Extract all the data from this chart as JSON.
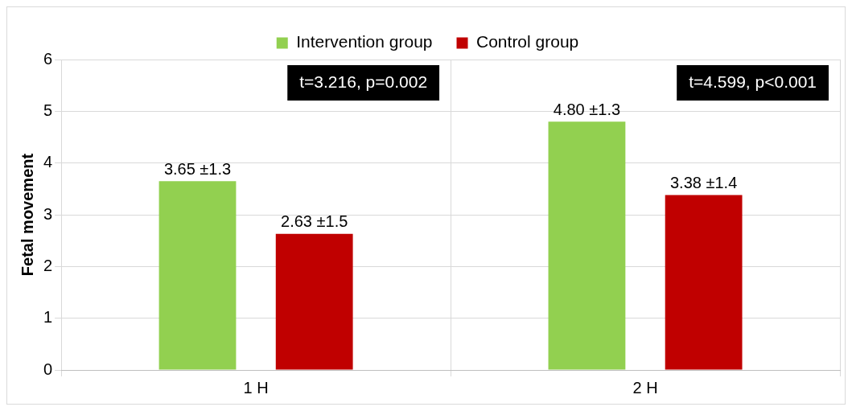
{
  "chart_data": {
    "type": "bar",
    "ylabel": "Fetal movement",
    "categories": [
      "1 H",
      "2 H"
    ],
    "series": [
      {
        "name": "Intervention group",
        "color": "#92d050",
        "values": [
          3.65,
          4.8
        ],
        "value_labels": [
          "3.65 ±1.3",
          "4.80 ±1.3"
        ]
      },
      {
        "name": "Control group",
        "color": "#c00000",
        "values": [
          2.63,
          3.38
        ],
        "value_labels": [
          "2.63 ±1.5",
          "3.38 ±1.4"
        ]
      }
    ],
    "ylim": [
      0,
      6
    ],
    "yticks": [
      0,
      1,
      2,
      3,
      4,
      5,
      6
    ],
    "grid": true,
    "legend": "top",
    "annotations": [
      "t=3.216, p=0.002",
      "t=4.599, p<0.001"
    ]
  }
}
